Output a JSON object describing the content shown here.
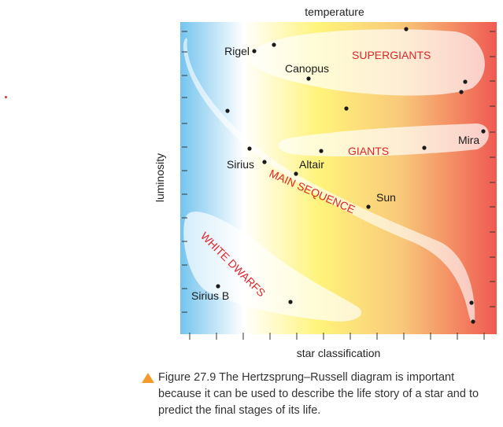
{
  "diagram": {
    "top_axis_label": "temperature",
    "left_axis_label": "luminosity",
    "bottom_axis_label": "star classification",
    "regions": [
      {
        "id": "supergiants",
        "label": "SUPERGIANTS"
      },
      {
        "id": "giants",
        "label": "GIANTS"
      },
      {
        "id": "main-sequence",
        "label": "MAIN SEQUENCE"
      },
      {
        "id": "white-dwarfs",
        "label": "WHITE DWARFS"
      }
    ],
    "labeled_stars": [
      {
        "id": "rigel",
        "label": "Rigel"
      },
      {
        "id": "canopus",
        "label": "Canopus"
      },
      {
        "id": "mira",
        "label": "Mira"
      },
      {
        "id": "sirius",
        "label": "Sirius"
      },
      {
        "id": "altair",
        "label": "Altair"
      },
      {
        "id": "sun",
        "label": "Sun"
      },
      {
        "id": "sirius-b",
        "label": "Sirius B"
      }
    ],
    "colors": {
      "spectrum": [
        "#74c4ee",
        "#ffffff",
        "#fff37a",
        "#f8c87a",
        "#ef5a52"
      ],
      "region_text": "#e0262b",
      "star": "#1a1a1a"
    }
  },
  "caption": {
    "icon": "triangle-icon",
    "text": "Figure 27.9 The Hertzsprung–Russell diagram is important because it can be used to describe the life story of a star and to predict the final stages of its life."
  }
}
